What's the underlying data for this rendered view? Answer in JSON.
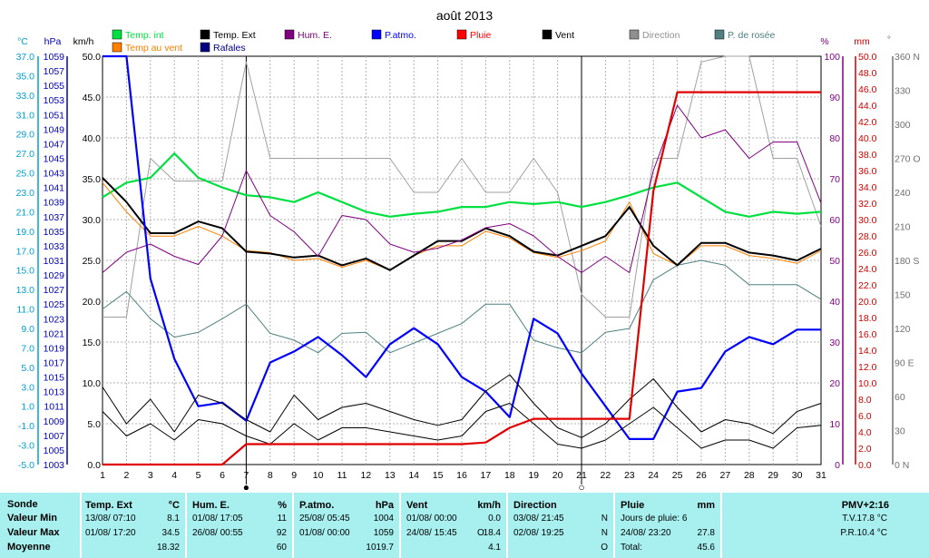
{
  "chart_data": {
    "type": "line",
    "title": "août 2013",
    "x": [
      1,
      2,
      3,
      4,
      5,
      6,
      7,
      8,
      9,
      10,
      11,
      12,
      13,
      14,
      15,
      16,
      17,
      18,
      19,
      20,
      21,
      22,
      23,
      24,
      25,
      26,
      27,
      28,
      29,
      30,
      31
    ],
    "x_ticks": [
      "1",
      "2",
      "3",
      "4",
      "5",
      "6",
      "7",
      "8",
      "9",
      "10",
      "11",
      "12",
      "13",
      "14",
      "15",
      "16",
      "17",
      "18",
      "19",
      "20",
      "21",
      "22",
      "23",
      "24",
      "25",
      "26",
      "27",
      "28",
      "29",
      "30",
      "31"
    ],
    "axes": {
      "temp": {
        "label": "°C",
        "min": -5,
        "max": 37,
        "ticks": [
          "37.0",
          "35.0",
          "33.0",
          "31.0",
          "29.0",
          "27.0",
          "25.0",
          "23.0",
          "21.0",
          "19.0",
          "17.0",
          "15.0",
          "13.0",
          "11.0",
          "9.0",
          "7.0",
          "5.0",
          "3.0",
          "1.0",
          "-1.0",
          "-3.0",
          "-5.0"
        ]
      },
      "pressure": {
        "label": "hPa",
        "min": 1003,
        "max": 1059,
        "ticks": [
          "1059",
          "1057",
          "1055",
          "1053",
          "1051",
          "1049",
          "1047",
          "1045",
          "1043",
          "1041",
          "1039",
          "1037",
          "1035",
          "1033",
          "1031",
          "1029",
          "1027",
          "1025",
          "1023",
          "1021",
          "1019",
          "1017",
          "1015",
          "1013",
          "1011",
          "1009",
          "1007",
          "1005",
          "1003"
        ]
      },
      "wind": {
        "label": "km/h",
        "min": 0,
        "max": 50,
        "ticks": [
          "50.0",
          "45.0",
          "40.0",
          "35.0",
          "30.0",
          "25.0",
          "20.0",
          "15.0",
          "10.0",
          "5.0",
          "0.0"
        ]
      },
      "humidity": {
        "label": "%",
        "min": 0,
        "max": 100,
        "ticks": [
          "100",
          "90",
          "80",
          "70",
          "60",
          "50",
          "40",
          "30",
          "20",
          "10",
          "0"
        ]
      },
      "rain": {
        "label": "mm",
        "min": 0,
        "max": 50,
        "ticks": [
          "50.0",
          "48.0",
          "46.0",
          "44.0",
          "42.0",
          "40.0",
          "38.0",
          "36.0",
          "34.0",
          "32.0",
          "30.0",
          "28.0",
          "26.0",
          "24.0",
          "22.0",
          "20.0",
          "18.0",
          "16.0",
          "14.0",
          "12.0",
          "10.0",
          "8.0",
          "6.0",
          "4.0",
          "2.0",
          "0.0"
        ]
      },
      "direction": {
        "label": "°",
        "min": 0,
        "max": 360,
        "ticks": [
          "360 N",
          "330",
          "300",
          "270 O",
          "240",
          "210",
          "180 S",
          "150",
          "120",
          "90 E",
          "60",
          "30",
          "0 N"
        ]
      }
    },
    "legend": [
      {
        "name": "Temp. int",
        "color": "#00e040"
      },
      {
        "name": "Temp. Ext",
        "color": "#000000"
      },
      {
        "name": "Hum. E.",
        "color": "#800080"
      },
      {
        "name": "P.atmo.",
        "color": "#0000ff"
      },
      {
        "name": "Pluie",
        "color": "#ff0000"
      },
      {
        "name": "Vent",
        "color": "#000000"
      },
      {
        "name": "Direction",
        "color": "#909090"
      },
      {
        "name": "P. de rosée",
        "color": "#508080"
      },
      {
        "name": "Temp au vent",
        "color": "#ff8000"
      },
      {
        "name": "Rafales",
        "color": "#000080"
      }
    ],
    "series": [
      {
        "name": "Direction",
        "axis": "direction",
        "color": "#a0a0a0",
        "values": [
          130,
          130,
          270,
          250,
          250,
          250,
          355,
          270,
          270,
          270,
          270,
          270,
          270,
          240,
          240,
          270,
          240,
          240,
          270,
          240,
          150,
          130,
          130,
          270,
          270,
          355,
          360,
          360,
          270,
          270,
          210
        ]
      },
      {
        "name": "P. de rosée",
        "axis": "temp",
        "color": "#508080",
        "values": [
          11,
          12.8,
          10,
          8.1,
          8.6,
          10,
          11.5,
          8.5,
          7.8,
          6.5,
          8.5,
          8.6,
          6.5,
          7.5,
          8.5,
          9.5,
          11.5,
          11.5,
          7.8,
          7,
          6.5,
          8.6,
          9,
          14,
          15.5,
          16,
          15.5,
          13.5,
          13.5,
          13.5,
          12
        ]
      },
      {
        "name": "Temp. int",
        "axis": "temp",
        "color": "#00e040",
        "values": [
          22.5,
          24,
          24.5,
          27,
          24.5,
          23.5,
          22.7,
          22.5,
          22,
          23,
          22,
          21,
          20.5,
          20.8,
          21,
          21.5,
          21.5,
          22,
          21.8,
          22,
          21.5,
          22,
          22.7,
          23.5,
          24,
          22.5,
          21,
          20.5,
          21,
          20.8,
          21
        ]
      },
      {
        "name": "Temp au vent",
        "axis": "temp",
        "color": "#ff8000",
        "values": [
          24,
          21,
          18.5,
          18.5,
          19.5,
          18.5,
          17,
          16.8,
          16,
          16.2,
          15.3,
          16,
          15,
          16.5,
          17.5,
          17.5,
          19,
          18.3,
          16.8,
          16.3,
          17,
          18,
          22,
          16.7,
          15.5,
          17.5,
          17.5,
          16.5,
          16.2,
          15.7,
          17
        ]
      },
      {
        "name": "Temp. Ext",
        "axis": "temp",
        "color": "#000000",
        "values": [
          24.5,
          22,
          18.8,
          18.8,
          20,
          19.3,
          16.9,
          16.7,
          16.3,
          16.5,
          15.5,
          16.2,
          15,
          16.5,
          18,
          18,
          19.3,
          18.5,
          16.9,
          16.5,
          17.5,
          18.5,
          21.5,
          17.5,
          15.5,
          17.8,
          17.8,
          16.8,
          16.5,
          16,
          17.2
        ]
      },
      {
        "name": "Hum. E.",
        "axis": "humidity",
        "color": "#800080",
        "values": [
          47,
          52,
          54,
          51,
          49,
          56,
          72,
          61,
          57,
          51,
          61,
          60,
          54,
          52,
          53,
          55,
          58,
          59,
          56,
          51,
          47,
          51,
          47,
          72,
          88,
          80,
          82,
          75,
          79,
          79,
          64
        ]
      },
      {
        "name": "P.atmo.",
        "axis": "pressure",
        "color": "#0000ff",
        "values": [
          1059,
          1059,
          1028.5,
          1017.5,
          1011,
          1011.5,
          1009,
          1017,
          1018.5,
          1020.5,
          1018,
          1015,
          1019.5,
          1021.7,
          1019.5,
          1015,
          1013,
          1009.5,
          1023,
          1021,
          1015.5,
          1011,
          1006.5,
          1006.5,
          1013,
          1013.5,
          1018.5,
          1020.5,
          1019.5,
          1021.5,
          1021.5
        ]
      },
      {
        "name": "Rafales",
        "axis": "wind",
        "color": "#000000",
        "values": [
          9.5,
          5,
          8,
          4,
          8.5,
          7.5,
          5.5,
          4,
          8.5,
          5.5,
          7,
          7.5,
          6.5,
          5.5,
          4.8,
          5.5,
          9,
          11,
          7.5,
          4.5,
          3.3,
          5,
          8,
          10.5,
          7,
          4,
          5.5,
          5,
          3.8,
          6.5,
          7.5
        ]
      },
      {
        "name": "Vent",
        "axis": "wind",
        "color": "#000000",
        "values": [
          6.5,
          3.5,
          5,
          3,
          5.5,
          5,
          3.5,
          2.5,
          5,
          3,
          4.5,
          4.5,
          4,
          3.5,
          3,
          3.5,
          6.5,
          7.5,
          5,
          2.5,
          2,
          3,
          5,
          7,
          4.5,
          2,
          3,
          3,
          2,
          4.5,
          4.8
        ]
      },
      {
        "name": "Pluie",
        "axis": "rain",
        "color": "#e00000",
        "values": [
          0,
          0,
          0,
          0,
          0,
          0,
          2.5,
          2.5,
          2.5,
          2.5,
          2.5,
          2.5,
          2.5,
          2.5,
          2.5,
          2.5,
          2.7,
          4.5,
          5.6,
          5.6,
          5.6,
          5.6,
          5.6,
          33.5,
          45.6,
          45.6,
          45.6,
          45.6,
          45.6,
          45.6,
          45.6
        ]
      }
    ],
    "markers": [
      {
        "day": "7",
        "symbol": "●"
      },
      {
        "day": "21",
        "symbol": "○"
      }
    ],
    "grid": true
  },
  "panel": {
    "row_labels": {
      "sonde": "Sonde",
      "min": "Valeur Min",
      "max": "Valeur Max",
      "moy": "Moyenne"
    },
    "temp": {
      "title": "Temp. Ext",
      "unit": "°C",
      "min_date": "13/08/  07:10",
      "min_val": "8.1",
      "max_date": "01/08/  17:20",
      "max_val": "34.5",
      "avg": "18.32"
    },
    "hum": {
      "title": "Hum. E.",
      "unit": "%",
      "min_date": "01/08/  17:05",
      "min_val": "11",
      "max_date": "26/08/  00:55",
      "max_val": "92",
      "avg": "60"
    },
    "patmo": {
      "title": "P.atmo.",
      "unit": "hPa",
      "min_date": "25/08/  05:45",
      "min_val": "1004",
      "max_date": "01/08/  00:00",
      "max_val": "1059",
      "avg": "1019.7"
    },
    "vent": {
      "title": "Vent",
      "unit": "km/h",
      "min_date": "01/08/  00:00",
      "min_val": "0.0",
      "max_date": "24/08/  15:45",
      "max_dir": "O",
      "max_val": "18.4",
      "avg": "4.1"
    },
    "dir": {
      "title": "Direction",
      "min_date": "03/08/  21:45",
      "min_val": "N",
      "max_date": "02/08/  19:25",
      "max_val": "N",
      "avg": "O"
    },
    "pluie": {
      "title": "Pluie",
      "unit": "mm",
      "days": "Jours de pluie: 6",
      "max_date": "24/08/  23:20",
      "max_val": "27.8",
      "total_label": "Total:",
      "total_val": "45.6"
    },
    "pmv": {
      "title": "PMV+2:16",
      "tv": "T.V.17.8 °C",
      "pr": "P.R.10.4 °C"
    }
  }
}
